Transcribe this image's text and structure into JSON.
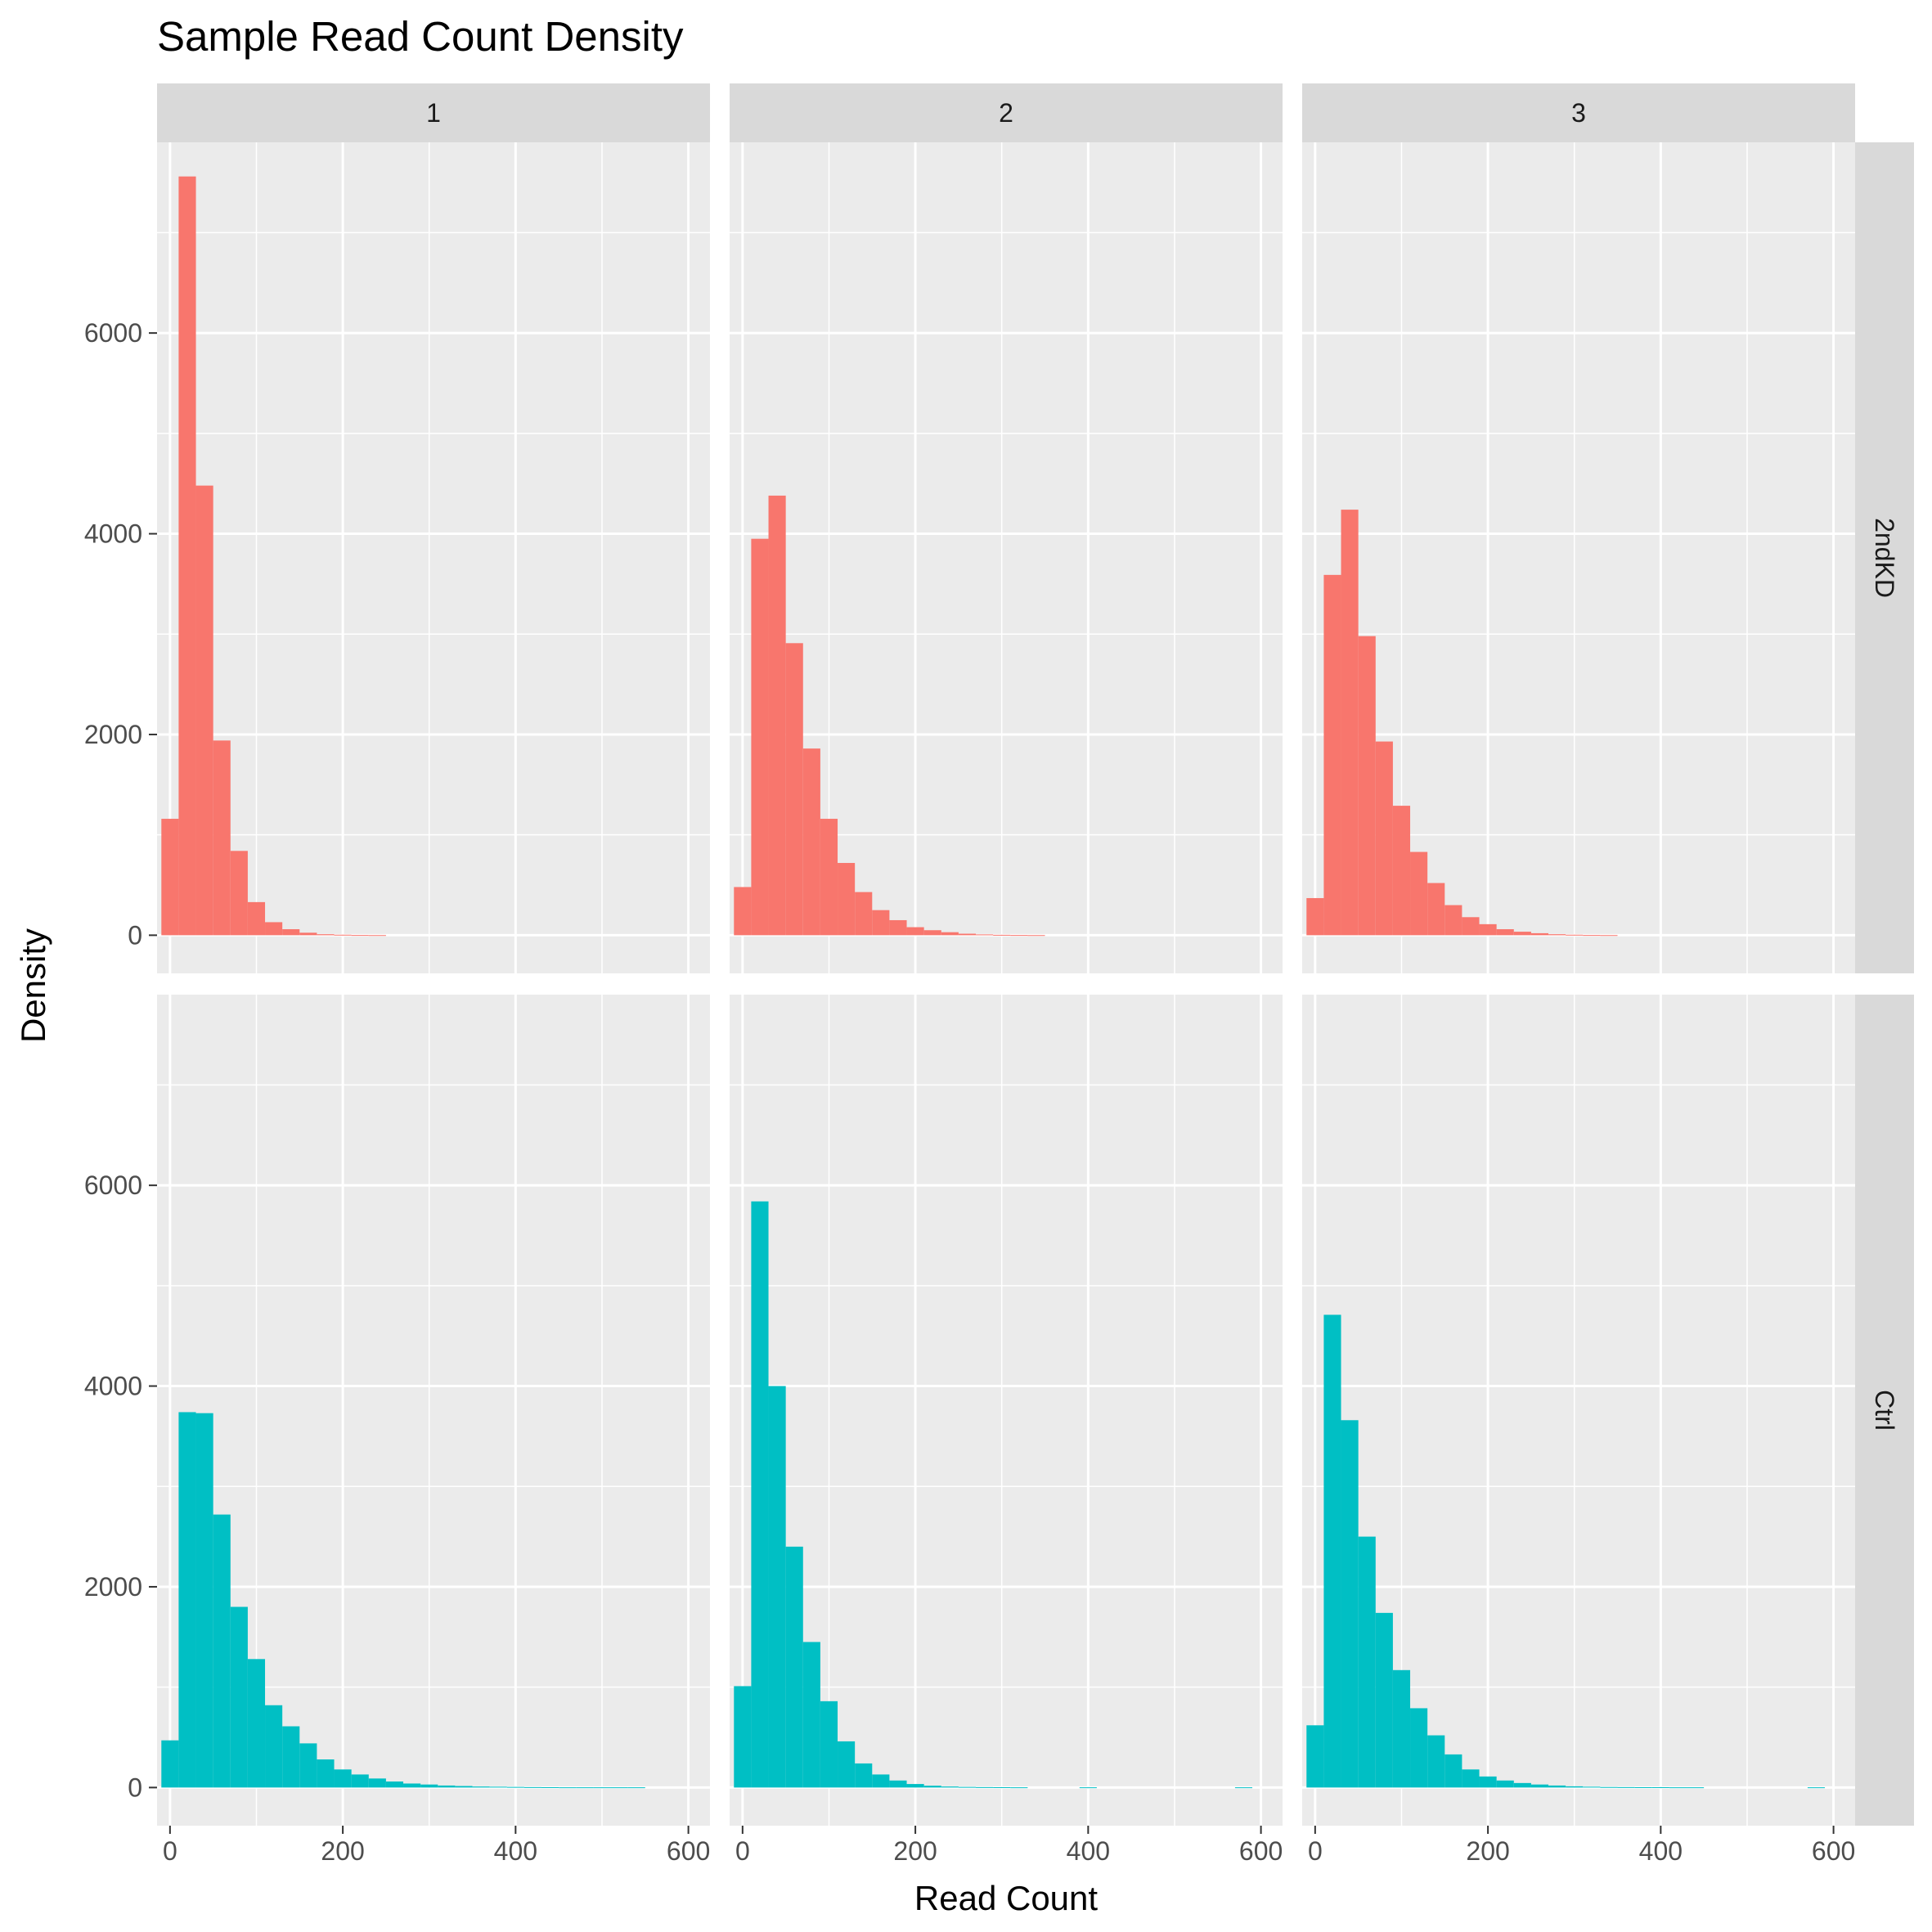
{
  "chart_data": {
    "type": "bar",
    "title": "Sample Read Count Density",
    "xlabel": "Read Count",
    "ylabel": "Density",
    "xlim": [
      -15,
      625
    ],
    "ylim": [
      -380,
      7900
    ],
    "x_ticks": [
      0,
      200,
      400,
      600
    ],
    "y_ticks": [
      0,
      2000,
      4000,
      6000
    ],
    "x_tick_labels": [
      "0",
      "200",
      "400",
      "600"
    ],
    "y_tick_labels": [
      "0",
      "2000",
      "4000",
      "6000"
    ],
    "bin_width": 20,
    "bin_start": -10,
    "grid": true,
    "legend": "none",
    "col_facets": [
      "1",
      "2",
      "3"
    ],
    "row_facets": [
      "2ndKD",
      "Ctrl"
    ],
    "colors": {
      "2ndKD": "#F8766D",
      "Ctrl": "#00BFC4"
    },
    "panels": [
      {
        "row": "2ndKD",
        "col": "1",
        "values": [
          1160,
          7560,
          4480,
          1940,
          840,
          330,
          130,
          60,
          25,
          10,
          5,
          2,
          1,
          0,
          0,
          0,
          0,
          0,
          0,
          0,
          0,
          0,
          0,
          0,
          0,
          0,
          0,
          0,
          0,
          0
        ]
      },
      {
        "row": "2ndKD",
        "col": "2",
        "values": [
          480,
          3950,
          4380,
          2910,
          1860,
          1160,
          720,
          430,
          250,
          150,
          80,
          50,
          30,
          15,
          8,
          4,
          2,
          1,
          0,
          0,
          0,
          0,
          0,
          0,
          0,
          0,
          0,
          0,
          0,
          0
        ]
      },
      {
        "row": "2ndKD",
        "col": "3",
        "values": [
          370,
          3590,
          4240,
          2980,
          1930,
          1290,
          830,
          520,
          300,
          180,
          110,
          60,
          35,
          20,
          10,
          5,
          2,
          1,
          0,
          0,
          0,
          0,
          0,
          0,
          0,
          0,
          0,
          0,
          0,
          0
        ]
      },
      {
        "row": "Ctrl",
        "col": "1",
        "values": [
          470,
          3740,
          3730,
          2720,
          1800,
          1280,
          820,
          610,
          440,
          280,
          180,
          130,
          90,
          60,
          40,
          30,
          20,
          15,
          10,
          8,
          6,
          4,
          3,
          2,
          2,
          2,
          2,
          2,
          0,
          0
        ]
      },
      {
        "row": "Ctrl",
        "col": "2",
        "values": [
          1010,
          5840,
          4000,
          2400,
          1450,
          860,
          460,
          240,
          130,
          70,
          35,
          18,
          10,
          6,
          4,
          3,
          2,
          0,
          0,
          0,
          2,
          0,
          0,
          0,
          0,
          0,
          0,
          0,
          0,
          2
        ]
      },
      {
        "row": "Ctrl",
        "col": "3",
        "values": [
          620,
          4710,
          3660,
          2500,
          1740,
          1170,
          790,
          520,
          330,
          180,
          110,
          70,
          45,
          30,
          20,
          12,
          8,
          5,
          4,
          3,
          3,
          2,
          2,
          0,
          0,
          0,
          0,
          0,
          0,
          2
        ]
      }
    ]
  }
}
